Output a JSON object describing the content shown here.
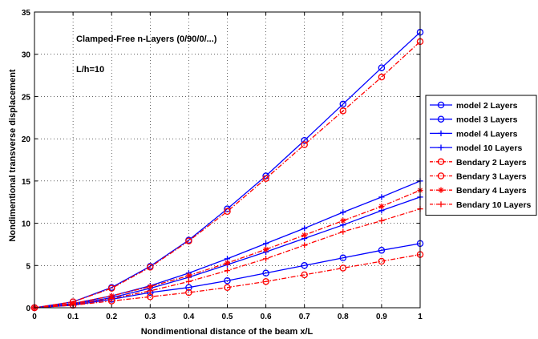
{
  "chart_data": {
    "type": "line",
    "title": "",
    "annotations": [
      "Clamped-Free n-Layers (0/90/0/...)",
      "L/h=10"
    ],
    "xlabel": "Nondimentional distance of the beam x/L",
    "ylabel": "Nondimentional transverse displacement",
    "xlim": [
      0,
      1
    ],
    "ylim": [
      0,
      35
    ],
    "x_ticks": [
      "0",
      "0.1",
      "0.2",
      "0.3",
      "0.4",
      "0.5",
      "0.6",
      "0.7",
      "0.8",
      "0.9",
      "1"
    ],
    "y_ticks": [
      "0",
      "5",
      "10",
      "15",
      "20",
      "25",
      "30",
      "35"
    ],
    "grid": true,
    "legend_position": "right",
    "x": [
      0,
      0.1,
      0.2,
      0.3,
      0.4,
      0.5,
      0.6,
      0.7,
      0.8,
      0.9,
      1.0
    ],
    "series": [
      {
        "name": "model 2 Layers",
        "color": "#0000ff",
        "line": "solid",
        "marker": "circle",
        "values": [
          0,
          0.7,
          2.4,
          4.9,
          8.0,
          11.7,
          15.6,
          19.8,
          24.1,
          28.4,
          32.6
        ]
      },
      {
        "name": "model 3 Layers",
        "color": "#0000ff",
        "line": "solid",
        "marker": "circle",
        "values": [
          0,
          0.3,
          1.0,
          1.8,
          2.4,
          3.2,
          4.1,
          5.0,
          5.9,
          6.8,
          7.6
        ]
      },
      {
        "name": "model 4 Layers",
        "color": "#0000ff",
        "line": "solid",
        "marker": "plus",
        "values": [
          0,
          0.5,
          1.4,
          2.6,
          4.1,
          5.8,
          7.6,
          9.4,
          11.3,
          13.1,
          15.0
        ]
      },
      {
        "name": "model 10 Layers",
        "color": "#0000ff",
        "line": "solid",
        "marker": "plus",
        "values": [
          0,
          0.4,
          1.2,
          2.3,
          3.6,
          5.1,
          6.6,
          8.2,
          9.8,
          11.5,
          13.1
        ]
      },
      {
        "name": "Bendary 2 Layers",
        "color": "#ff0000",
        "line": "dashdot",
        "marker": "circle",
        "values": [
          0,
          0.7,
          2.3,
          4.8,
          7.9,
          11.4,
          15.3,
          19.3,
          23.3,
          27.3,
          31.5
        ]
      },
      {
        "name": "Bendary  3 Layers",
        "color": "#ff0000",
        "line": "dashdot",
        "marker": "circle",
        "values": [
          0,
          0.3,
          0.8,
          1.3,
          1.8,
          2.4,
          3.1,
          3.9,
          4.7,
          5.5,
          6.3
        ]
      },
      {
        "name": "Bendary  4 Layers",
        "color": "#ff0000",
        "line": "dashdot",
        "marker": "star",
        "values": [
          0,
          0.5,
          1.4,
          2.5,
          3.8,
          5.3,
          6.9,
          8.6,
          10.3,
          12.0,
          13.9
        ]
      },
      {
        "name": "Bendary  10 Layers",
        "color": "#ff0000",
        "line": "dashdot",
        "marker": "plus",
        "values": [
          0,
          0.4,
          1.1,
          2.0,
          3.1,
          4.4,
          5.8,
          7.4,
          9.0,
          10.3,
          11.7
        ]
      }
    ]
  }
}
